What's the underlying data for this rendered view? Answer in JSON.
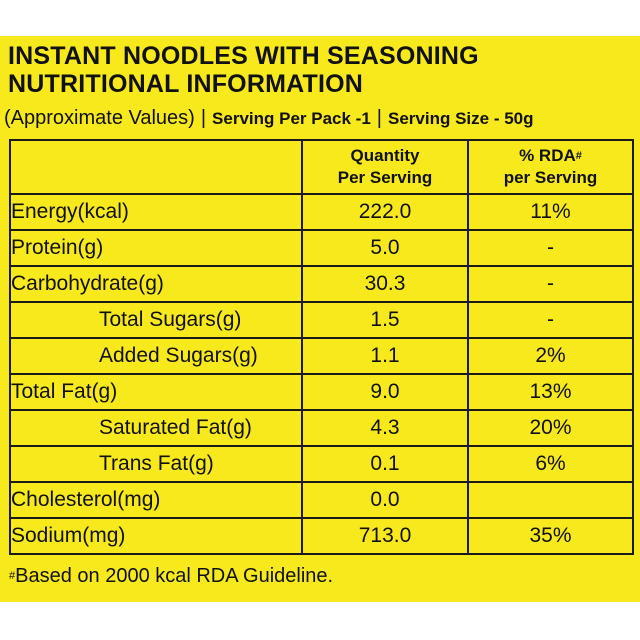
{
  "title_line1": "INSTANT NOODLES WITH SEASONING",
  "title_line2": "NUTRITIONAL INFORMATION",
  "approx": "(Approximate Values)",
  "sep": "|",
  "serving_per_pack": "Serving Per Pack -1",
  "serving_size": "Serving Size - 50g",
  "headers": {
    "qty_line1": "Quantity",
    "qty_line2": "Per Serving",
    "rda_line1": "% RDA",
    "rda_sup": "#",
    "rda_line2": "per Serving"
  },
  "rows": [
    {
      "name": "Energy(kcal)",
      "qty": "222.0",
      "rda": "11%"
    },
    {
      "name": "Protein(g)",
      "qty": "5.0",
      "rda": "-"
    },
    {
      "name": "Carbohydrate(g)",
      "qty": "30.3",
      "rda": "-"
    },
    {
      "name": "Total Sugars(g)",
      "qty": "1.5",
      "rda": "-"
    },
    {
      "name": "Added Sugars(g)",
      "qty": "1.1",
      "rda": "2%"
    },
    {
      "name": "Total Fat(g)",
      "qty": "9.0",
      "rda": "13%"
    },
    {
      "name": "Saturated Fat(g)",
      "qty": "4.3",
      "rda": "20%"
    },
    {
      "name": "Trans Fat(g)",
      "qty": "0.1",
      "rda": "6%"
    },
    {
      "name": "Cholesterol(mg)",
      "qty": "0.0",
      "rda": ""
    },
    {
      "name": "Sodium(mg)",
      "qty": "713.0",
      "rda": "35%"
    }
  ],
  "footnote_sup": "#",
  "footnote": "Based on 2000 kcal RDA Guideline.",
  "colors": {
    "background": "#f7e91c",
    "text": "#111111"
  }
}
